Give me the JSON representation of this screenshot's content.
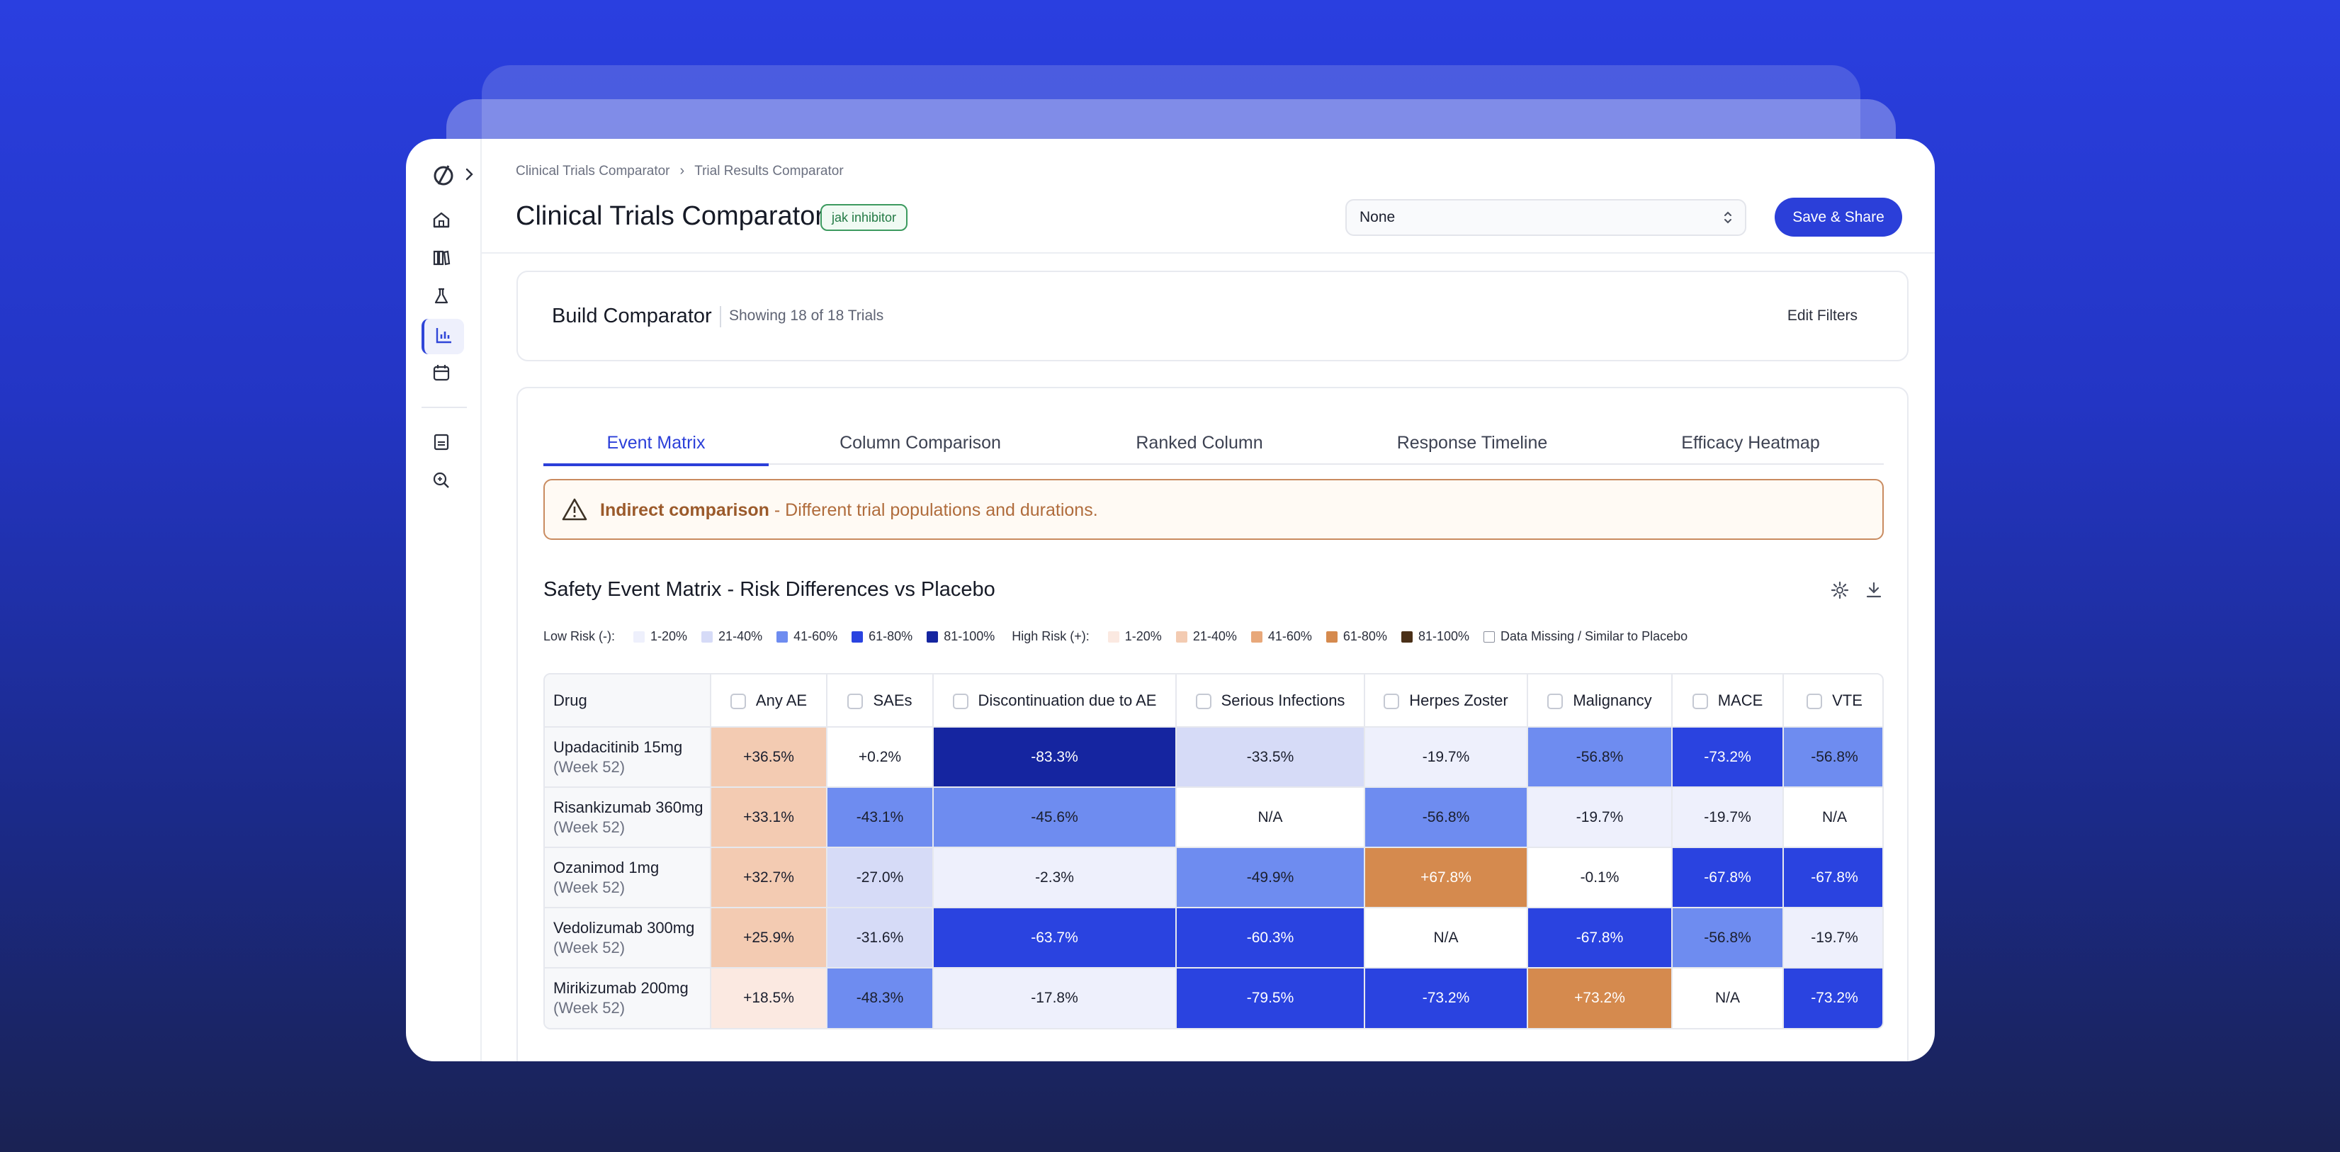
{
  "breadcrumb": {
    "root": "Clinical Trials Comparator",
    "current": "Trial Results Comparator"
  },
  "header": {
    "title": "Clinical Trials Comparator",
    "tag": "jak inhibitor",
    "select_value": "None",
    "save_label": "Save & Share"
  },
  "build": {
    "title": "Build Comparator",
    "count": "Showing 18 of 18 Trials",
    "edit_label": "Edit Filters"
  },
  "tabs": [
    {
      "label": "Event Matrix",
      "active": true
    },
    {
      "label": "Column Comparison",
      "active": false
    },
    {
      "label": "Ranked Column",
      "active": false
    },
    {
      "label": "Response Timeline",
      "active": false
    },
    {
      "label": "Efficacy Heatmap",
      "active": false
    }
  ],
  "warning": {
    "bold": "Indirect comparison",
    "text": " - Different trial populations and durations."
  },
  "matrix": {
    "title": "Safety Event Matrix - Risk Differences vs Placebo",
    "legend": {
      "low_label": "Low Risk (-):",
      "high_label": "High Risk (+):",
      "low": [
        {
          "label": "1-20%",
          "color": "#eef0fc"
        },
        {
          "label": "21-40%",
          "color": "#d6dbf7"
        },
        {
          "label": "41-60%",
          "color": "#6e8cf0"
        },
        {
          "label": "61-80%",
          "color": "#2a43e0"
        },
        {
          "label": "81-100%",
          "color": "#1525a0"
        }
      ],
      "high": [
        {
          "label": "1-20%",
          "color": "#fbe9e1"
        },
        {
          "label": "21-40%",
          "color": "#f3cbb2"
        },
        {
          "label": "41-60%",
          "color": "#e8a87a"
        },
        {
          "label": "61-80%",
          "color": "#d58a4e"
        },
        {
          "label": "81-100%",
          "color": "#4a3018"
        }
      ],
      "missing": "Data Missing / Similar to Placebo"
    },
    "drug_header": "Drug",
    "columns": [
      "Any AE",
      "SAEs",
      "Discontinuation due to AE",
      "Serious Infections",
      "Herpes Zoster",
      "Malignancy",
      "MACE",
      "VTE"
    ],
    "rows": [
      {
        "drug": "Upadacitinib 15mg",
        "week": "(Week 52)",
        "cells": [
          {
            "v": "+36.5%",
            "c": "#f3cbb2"
          },
          {
            "v": "+0.2%",
            "c": "#ffffff"
          },
          {
            "v": "-83.3%",
            "c": "#1525a0"
          },
          {
            "v": "-33.5%",
            "c": "#d6dbf7"
          },
          {
            "v": "-19.7%",
            "c": "#eef0fc"
          },
          {
            "v": "-56.8%",
            "c": "#6e8cf0"
          },
          {
            "v": "-73.2%",
            "c": "#2a43e0"
          },
          {
            "v": "-56.8%",
            "c": "#6e8cf0"
          }
        ]
      },
      {
        "drug": "Risankizumab 360mg",
        "week": "(Week 52)",
        "cells": [
          {
            "v": "+33.1%",
            "c": "#f3cbb2"
          },
          {
            "v": "-43.1%",
            "c": "#6e8cf0"
          },
          {
            "v": "-45.6%",
            "c": "#6e8cf0"
          },
          {
            "v": "N/A",
            "c": "#ffffff"
          },
          {
            "v": "-56.8%",
            "c": "#6e8cf0"
          },
          {
            "v": "-19.7%",
            "c": "#eef0fc"
          },
          {
            "v": "-19.7%",
            "c": "#eef0fc"
          },
          {
            "v": "N/A",
            "c": "#ffffff"
          }
        ]
      },
      {
        "drug": "Ozanimod 1mg",
        "week": "(Week 52)",
        "cells": [
          {
            "v": "+32.7%",
            "c": "#f3cbb2"
          },
          {
            "v": "-27.0%",
            "c": "#d6dbf7"
          },
          {
            "v": "-2.3%",
            "c": "#eef0fc"
          },
          {
            "v": "-49.9%",
            "c": "#6e8cf0"
          },
          {
            "v": "+67.8%",
            "c": "#d58a4e"
          },
          {
            "v": "-0.1%",
            "c": "#ffffff"
          },
          {
            "v": "-67.8%",
            "c": "#2a43e0"
          },
          {
            "v": "-67.8%",
            "c": "#2a43e0"
          }
        ]
      },
      {
        "drug": "Vedolizumab 300mg",
        "week": "(Week 52)",
        "cells": [
          {
            "v": "+25.9%",
            "c": "#f3cbb2"
          },
          {
            "v": "-31.6%",
            "c": "#d6dbf7"
          },
          {
            "v": "-63.7%",
            "c": "#2a43e0"
          },
          {
            "v": "-60.3%",
            "c": "#2a43e0"
          },
          {
            "v": "N/A",
            "c": "#ffffff"
          },
          {
            "v": "-67.8%",
            "c": "#2a43e0"
          },
          {
            "v": "-56.8%",
            "c": "#6e8cf0"
          },
          {
            "v": "-19.7%",
            "c": "#eef0fc"
          }
        ]
      },
      {
        "drug": "Mirikizumab 200mg",
        "week": "(Week 52)",
        "cells": [
          {
            "v": "+18.5%",
            "c": "#fbe9e1"
          },
          {
            "v": "-48.3%",
            "c": "#6e8cf0"
          },
          {
            "v": "-17.8%",
            "c": "#eef0fc"
          },
          {
            "v": "-79.5%",
            "c": "#2a43e0"
          },
          {
            "v": "-73.2%",
            "c": "#2a43e0"
          },
          {
            "v": "+73.2%",
            "c": "#d58a4e"
          },
          {
            "v": "N/A",
            "c": "#ffffff"
          },
          {
            "v": "-73.2%",
            "c": "#2a43e0"
          }
        ]
      }
    ]
  },
  "icons": {
    "logo": "brand-logo-icon",
    "expand": "chevron-right-icon",
    "sidebar": [
      "home-icon",
      "library-icon",
      "flask-icon",
      "chart-icon",
      "calendar-icon",
      "document-icon",
      "search-insight-icon"
    ],
    "gear": "gear-icon",
    "download": "download-icon",
    "warning": "warning-triangle-icon"
  }
}
